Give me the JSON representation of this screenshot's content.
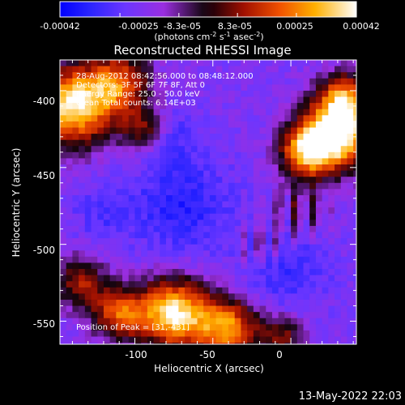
{
  "colorbar": {
    "ticks": [
      "-0.00042",
      "-0.00025",
      "-8.3e-05",
      "8.3e-05",
      "0.00025",
      "0.00042"
    ],
    "unit_prefix": "(photons cm",
    "unit_exp1": "-2",
    "unit_mid": " s",
    "unit_exp2": "-1",
    "unit_end": " asec",
    "unit_exp3": "-2",
    "unit_close": ")",
    "range": [
      -0.00042,
      0.00042
    ]
  },
  "info": {
    "line1": "28-Aug-2012 08:42:56.000 to 08:48:12.000",
    "line2": "Detectors: 3F 5F 6F 7F 8F, Att 0",
    "line3": "Energy Range: 25.0 - 50.0 keV",
    "line4": "Clean     Total counts: 6.14E+03",
    "peak": "Position of Peak = [31,-431]"
  },
  "footer": {
    "timestamp": "13-May-2022 22:03"
  },
  "chart_data": {
    "type": "heatmap",
    "title": "Reconstructed RHESSI Image",
    "xlabel": "Heliocentric X (arcsec)",
    "ylabel": "Heliocentric Y (arcsec)",
    "xlim": [
      -148,
      42
    ],
    "ylim": [
      -565,
      -380
    ],
    "xticks": [
      -100,
      -50,
      0
    ],
    "yticks": [
      -400,
      -450,
      -500,
      -550
    ],
    "colormap": "red-temperature",
    "peak_position": [
      31,
      -431
    ]
  }
}
